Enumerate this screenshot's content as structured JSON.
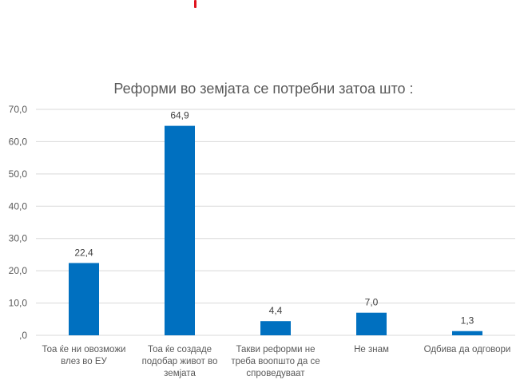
{
  "colors": {
    "bar": "#0070c0",
    "grid": "#d9d9d9",
    "accent": "#e0141e"
  },
  "chart_data": {
    "type": "bar",
    "title": "Реформи во земјата се потребни затоа што :",
    "categories": [
      [
        "Тоа ќе ни овозможи",
        "влез во ЕУ"
      ],
      [
        "Тоа ќе создаде",
        "подобар живот во",
        "земјата"
      ],
      [
        "Такви реформи не",
        "треба воопшто да се",
        "спроведуваат"
      ],
      [
        "Не знам"
      ],
      [
        "Одбива да одговори"
      ]
    ],
    "values": [
      22.4,
      64.9,
      4.4,
      7.0,
      1.3
    ],
    "value_labels": [
      "22,4",
      "64,9",
      "4,4",
      "7,0",
      "1,3"
    ],
    "ylim": [
      0,
      70
    ],
    "y_ticks": [
      {
        "value": 0,
        "label": ",0"
      },
      {
        "value": 10,
        "label": "10,0"
      },
      {
        "value": 20,
        "label": "20,0"
      },
      {
        "value": 30,
        "label": "30,0"
      },
      {
        "value": 40,
        "label": "40,0"
      },
      {
        "value": 50,
        "label": "50,0"
      },
      {
        "value": 60,
        "label": "60,0"
      },
      {
        "value": 70,
        "label": "70,0"
      }
    ],
    "grid": true,
    "legend": "none"
  }
}
